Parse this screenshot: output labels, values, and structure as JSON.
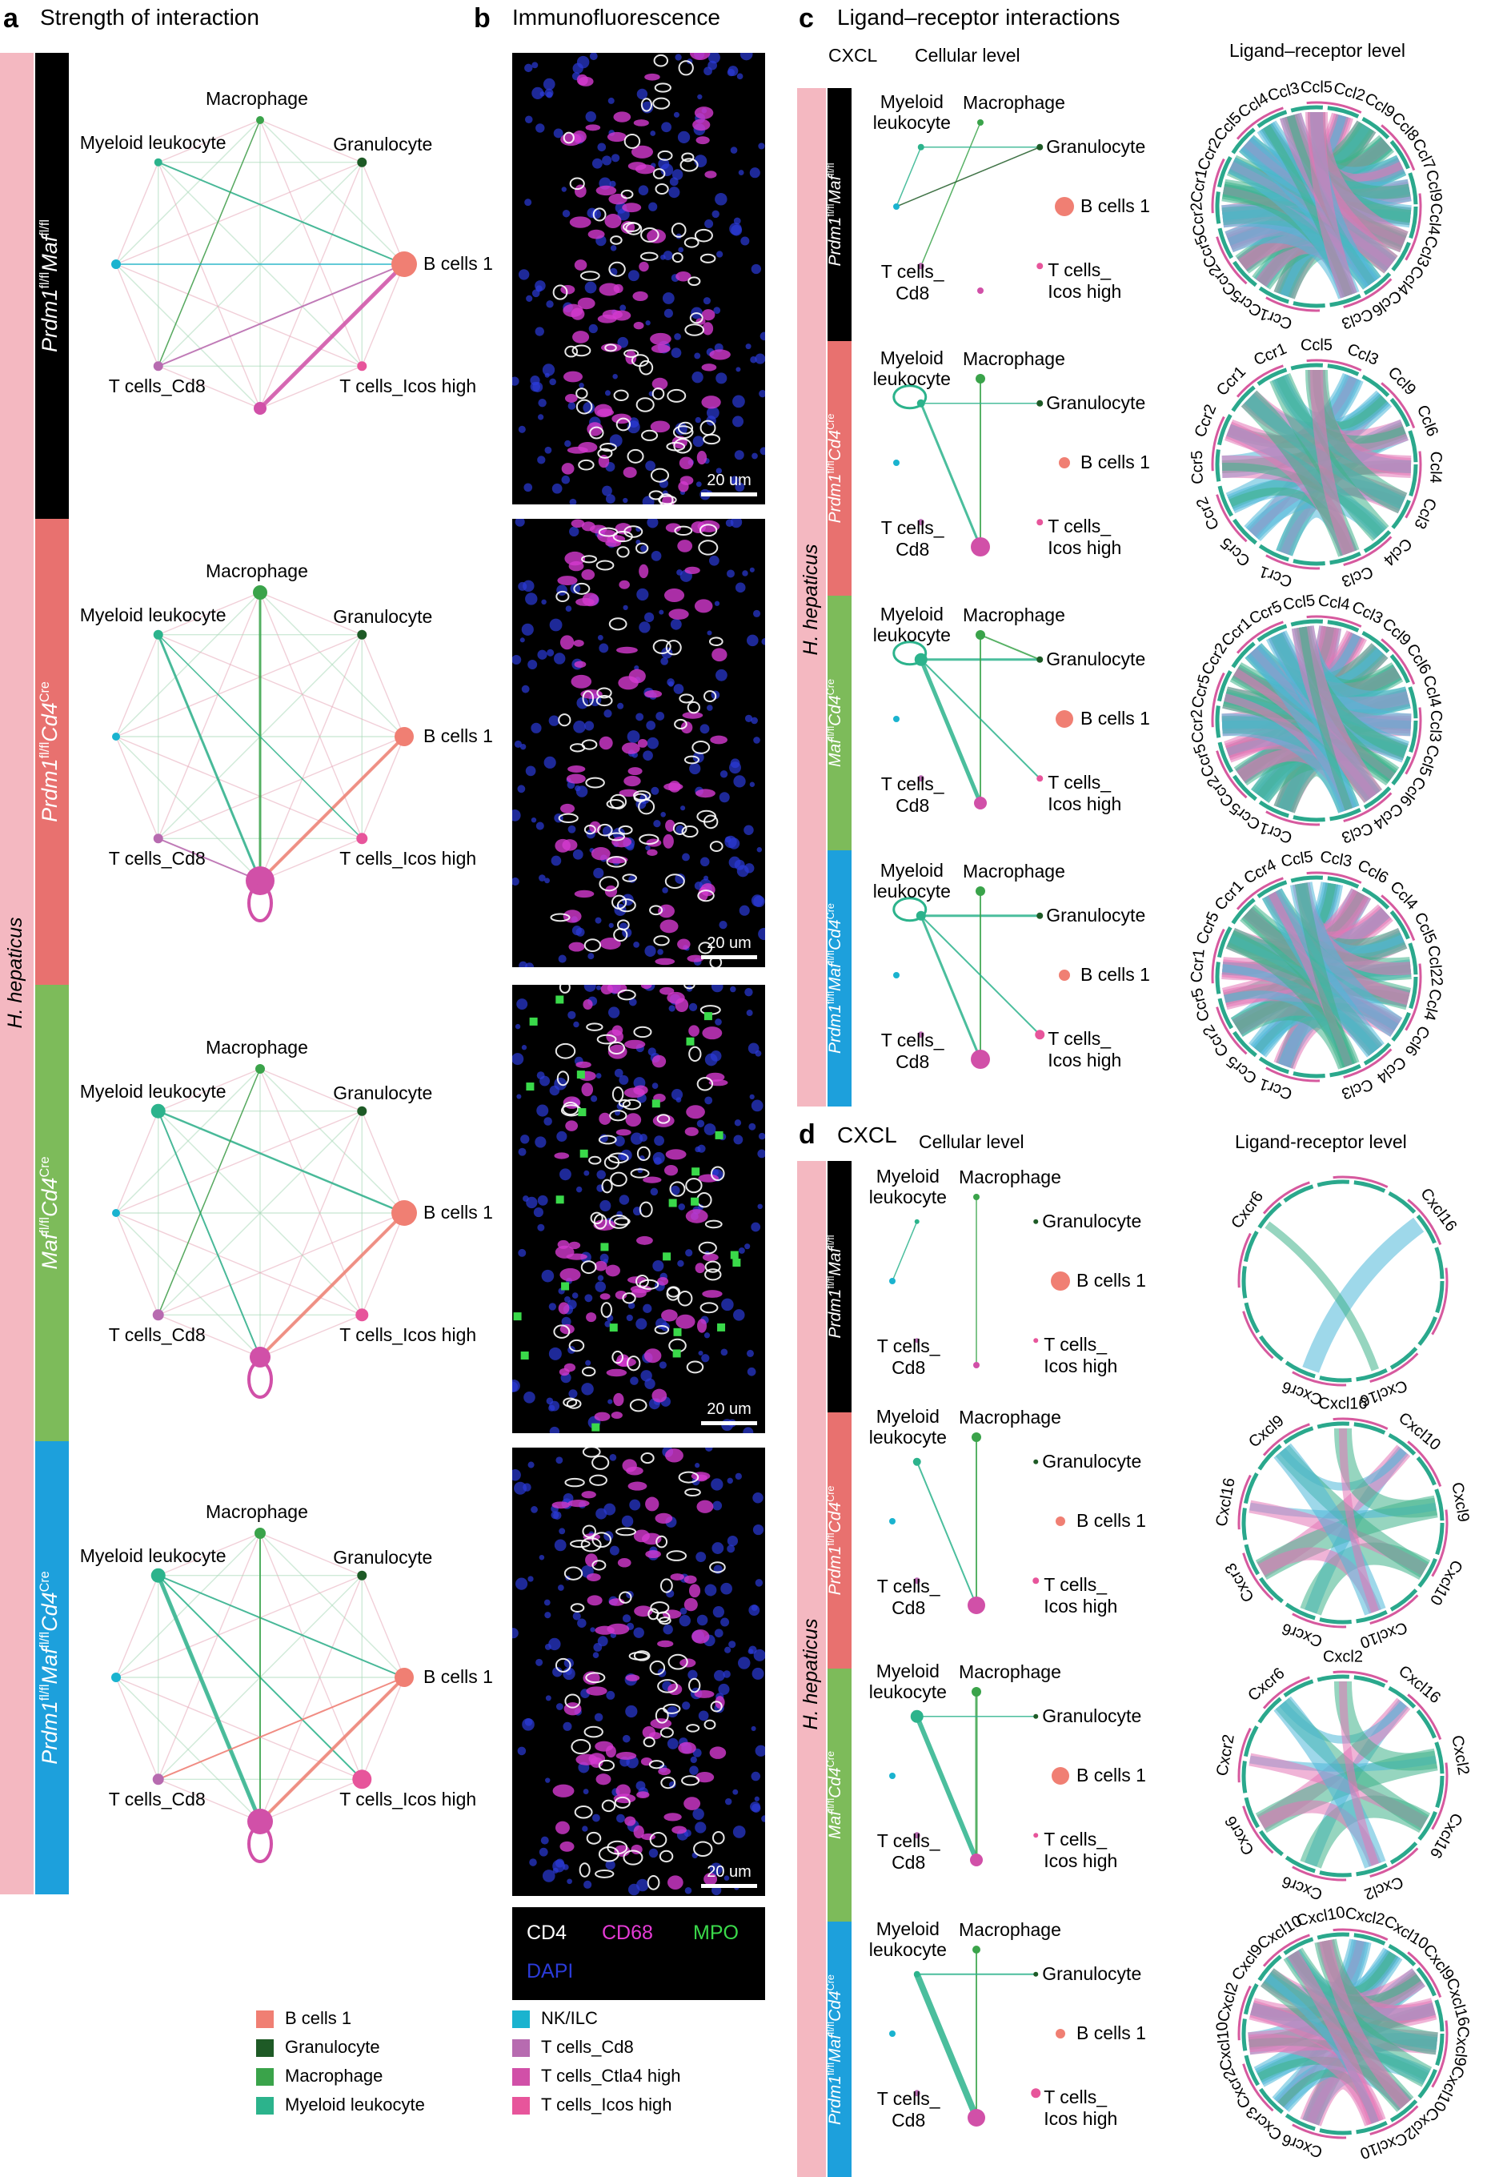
{
  "panels": {
    "a": {
      "letter": "a",
      "title": "Strength of interaction"
    },
    "b": {
      "letter": "b",
      "title": "Immunofluorescence"
    },
    "c": {
      "letter": "c",
      "title": "Ligand–receptor interactions",
      "sub_pathway": "CXCL",
      "sub_cellular": "Cellular level",
      "sub_lr": "Ligand–receptor level"
    },
    "d": {
      "letter": "d",
      "title": "CXCL",
      "sub_cellular": "Cellular level",
      "sub_lr": "Ligand-receptor  level"
    }
  },
  "infection": "H. hepaticus",
  "genotypes": [
    "Prdm1fl/flMaffl/fl",
    "Prdm1fl/flCd4Cre",
    "Maffl/flCd4Cre",
    "Prdm1fl/flMaffl/flCd4Cre"
  ],
  "genotype_parts": [
    {
      "a": "Prdm1",
      "a_sup": "fl/fl",
      "b": "Maf",
      "b_sup": "fl/fl",
      "c": "",
      "c_sup": ""
    },
    {
      "a": "Prdm1",
      "a_sup": "fl/fl",
      "b": "Cd4",
      "b_sup": "Cre",
      "c": "",
      "c_sup": ""
    },
    {
      "a": "Maf",
      "a_sup": "fl/fl",
      "b": "Cd4",
      "b_sup": "Cre",
      "c": "",
      "c_sup": ""
    },
    {
      "a": "Prdm1",
      "a_sup": "fl/fl",
      "b": "Maf",
      "b_sup": "fl/fl",
      "c": "Cd4",
      "c_sup": "Cre"
    }
  ],
  "genotype_colors": [
    "#000000",
    "#e8716f",
    "#7dbb5a",
    "#1da0dc"
  ],
  "infection_color": "#f4b8c1",
  "cell_types": {
    "macrophage": "Macrophage",
    "myeloid": "Myeloid leukocyte",
    "myeloid_l1": "Myeloid",
    "myeloid_l2": "leukocyte",
    "granulocyte": "Granulocyte",
    "nkilc": "NK/ILC",
    "bcells": "B cells 1",
    "cd8": "T cells_Cd8",
    "cd8_l1": "T cells_",
    "cd8_l2": "Cd8",
    "ctla4": "T cells_Ctla4 high",
    "icos": "T cells_Icos high",
    "icos_l1": "T cells_",
    "icos_l2": "Icos high"
  },
  "legend": [
    {
      "label": "B cells 1",
      "color": "#f07f73"
    },
    {
      "label": "Granulocyte",
      "color": "#1e5a26"
    },
    {
      "label": "Macrophage",
      "color": "#3aa34a"
    },
    {
      "label": "Myeloid leukocyte",
      "color": "#2cb38c"
    },
    {
      "label": "NK/ILC",
      "color": "#1ab3cf"
    },
    {
      "label": "T cells_Cd8",
      "color": "#b76bb0"
    },
    {
      "label": "T cells_Ctla4 high",
      "color": "#d150a8"
    },
    {
      "label": "T cells_Icos high",
      "color": "#e7559b"
    }
  ],
  "immunofluorescence": {
    "scalebar": "20 um",
    "channels": [
      {
        "label": "CD4",
        "color": "#ffffff"
      },
      {
        "label": "CD68",
        "color": "#e53bd6"
      },
      {
        "label": "MPO",
        "color": "#3ad94a"
      },
      {
        "label": "DAPI",
        "color": "#2b3bd9"
      }
    ]
  },
  "chord_c": [
    {
      "top": [
        "Ccr1",
        "Ccr5",
        "Ccr2",
        "Ccr5",
        "Ccr2",
        "Ccr1",
        "Ccr2"
      ],
      "bottom": [
        "Ccl5",
        "Ccl4",
        "Ccl3",
        "Ccl5",
        "Ccl2",
        "Ccl9",
        "Ccl8",
        "Ccl7",
        "Ccl9",
        "Ccl4",
        "Ccl3",
        "Ccl4",
        "Ccl6",
        "Ccl3"
      ]
    },
    {
      "top": [
        "Ccr1",
        "Ccr5",
        "Ccr2",
        "Ccr5",
        "Ccr2",
        "Ccr1",
        "Ccr1"
      ],
      "bottom": [
        "Ccl5",
        "Ccl3",
        "Ccl9",
        "Ccl6",
        "Ccl4",
        "Ccl3",
        "Ccl4",
        "Ccl3"
      ]
    },
    {
      "top": [
        "Ccr1",
        "Ccr5",
        "Ccr2",
        "Ccr5",
        "Ccr2",
        "Ccr5",
        "Ccr2",
        "Ccr1",
        "Ccr5"
      ],
      "bottom": [
        "Ccl5",
        "Ccl4",
        "Ccl3",
        "Ccl9",
        "Ccl6",
        "Ccl4",
        "Ccl3",
        "Ccl5",
        "Ccl6",
        "Ccl4",
        "Ccl3"
      ]
    },
    {
      "top": [
        "Ccr1",
        "Ccr5",
        "Ccr2",
        "Ccr5",
        "Ccr1",
        "Ccr5",
        "Ccr1",
        "Ccr4"
      ],
      "bottom": [
        "Ccl5",
        "Ccl3",
        "Ccl6",
        "Ccl4",
        "Ccl5",
        "Ccl22",
        "Ccl4",
        "Ccl6",
        "Ccl4",
        "Ccl3"
      ]
    }
  ],
  "chord_d": [
    {
      "labels": [
        "Cxcr6",
        "Cxcr6",
        "Cxcl16",
        "Cxcl16"
      ]
    },
    {
      "labels": [
        "Cxcr6",
        "Cxcr3",
        "Cxcl16",
        "Cxcl9",
        "Cxcl16",
        "Cxcl10",
        "Cxcl9",
        "Cxcl10",
        "Cxcl10"
      ]
    },
    {
      "labels": [
        "Cxcr6",
        "Cxcr6",
        "Cxcr2",
        "Cxcr6",
        "Cxcl2",
        "Cxcl16",
        "Cxcl2",
        "Cxcl16",
        "Cxcl2"
      ]
    },
    {
      "labels": [
        "Cxcr6",
        "Cxcr3",
        "Cxcr2",
        "Cxcl10",
        "Cxcl2",
        "Cxcl9",
        "Cxcl10",
        "Cxcl10",
        "Cxcl2",
        "Cxcl10",
        "Cxcl9",
        "Cxcl16",
        "Cxcl9",
        "Cxcl10",
        "Cxcl2",
        "Cxcl10"
      ]
    }
  ]
}
